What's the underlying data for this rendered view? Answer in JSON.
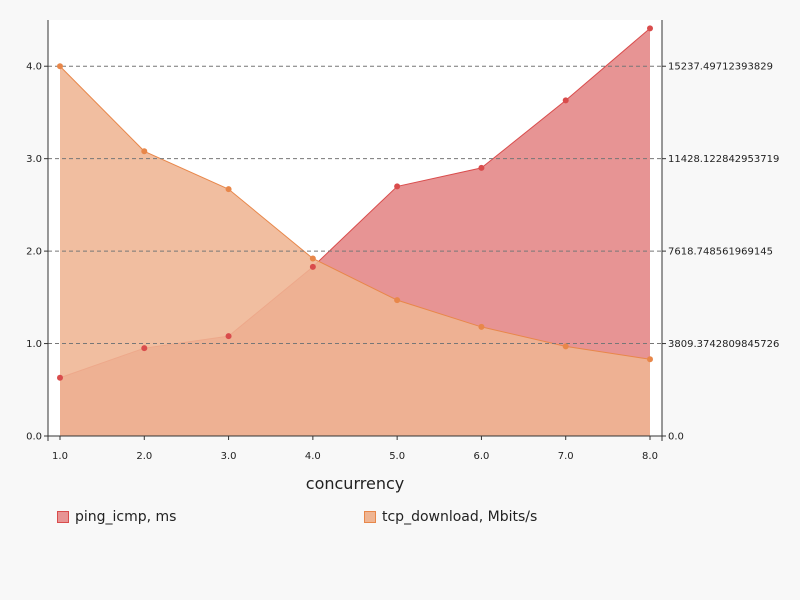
{
  "chart_data": {
    "type": "area",
    "x": [
      1.0,
      2.0,
      3.0,
      4.0,
      5.0,
      6.0,
      7.0,
      8.0
    ],
    "x_tick_labels": [
      "1.0",
      "2.0",
      "3.0",
      "4.0",
      "5.0",
      "6.0",
      "7.0",
      "8.0"
    ],
    "xlabel": "concurrency",
    "left_axis": {
      "range": [
        0,
        4.5
      ],
      "tick_values": [
        0,
        1,
        2,
        3,
        4
      ],
      "tick_labels": [
        "0.0",
        "1.0",
        "2.0",
        "3.0",
        "4.0"
      ]
    },
    "right_axis": {
      "range": [
        0,
        17142.18
      ],
      "tick_values": [
        0,
        3809.3742809845726,
        7618.748561969145,
        11428.122842953719,
        15237.49712393829
      ],
      "tick_labels": [
        "0.0",
        "3809.3742809845726",
        "7618.748561969145",
        "11428.122842953719",
        "15237.49712393829"
      ]
    },
    "grid": "horizontal dashed at right-axis ticks",
    "legend_position": "bottom",
    "series": [
      {
        "name": "ping_icmp, ms",
        "axis": "left",
        "color": "#d94c4c",
        "fill": "#e79494",
        "values": [
          0.63,
          0.95,
          1.08,
          1.83,
          2.7,
          2.9,
          3.63,
          4.41
        ]
      },
      {
        "name": "tcp_download, Mbits/s",
        "axis": "left",
        "color": "#e8874a",
        "fill": "#efb593",
        "values": [
          4.0,
          3.08,
          2.67,
          1.92,
          1.47,
          1.18,
          0.97,
          0.83
        ]
      }
    ]
  }
}
